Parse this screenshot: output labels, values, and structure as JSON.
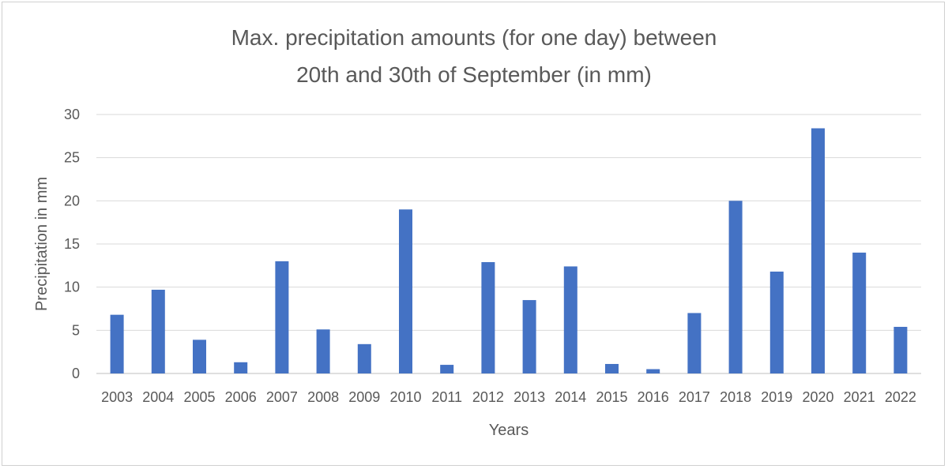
{
  "chart_data": {
    "type": "bar",
    "title_lines": [
      "Max. precipitation amounts (for one day) between",
      "20th and 30th of September (in mm)"
    ],
    "xlabel": "Years",
    "ylabel": "Precipitation in mm",
    "categories": [
      "2003",
      "2004",
      "2005",
      "2006",
      "2007",
      "2008",
      "2009",
      "2010",
      "2011",
      "2012",
      "2013",
      "2014",
      "2015",
      "2016",
      "2017",
      "2018",
      "2019",
      "2020",
      "2021",
      "2022"
    ],
    "values": [
      6.8,
      9.7,
      3.9,
      1.3,
      13.0,
      5.1,
      3.4,
      19.0,
      1.0,
      12.9,
      8.5,
      12.4,
      1.1,
      0.5,
      7.0,
      20.0,
      11.8,
      28.4,
      14.0,
      5.4
    ],
    "ylim": [
      0,
      30
    ],
    "yticks": [
      0,
      5,
      10,
      15,
      20,
      25,
      30
    ],
    "grid": true,
    "legend": "none",
    "bar_color": "#4472c4"
  }
}
